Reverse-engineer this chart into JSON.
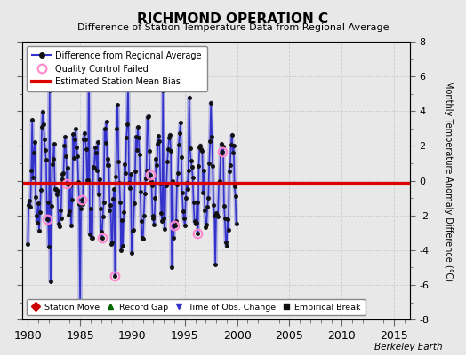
{
  "title": "RICHMOND OPERATION C",
  "subtitle": "Difference of Station Temperature Data from Regional Average",
  "ylabel_right": "Monthly Temperature Anomaly Difference (°C)",
  "xlim": [
    1979.5,
    2016.5
  ],
  "ylim": [
    -8,
    8
  ],
  "yticks": [
    -8,
    -6,
    -4,
    -2,
    0,
    2,
    4,
    6,
    8
  ],
  "xticks": [
    1980,
    1985,
    1990,
    1995,
    2000,
    2005,
    2010,
    2015
  ],
  "mean_bias": -0.15,
  "line_color": "#3333cc",
  "line_color_light": "#8888dd",
  "dot_color": "#111111",
  "bias_color": "#dd0000",
  "qc_color": "#ff88cc",
  "background_color": "#e8e8e8",
  "watermark": "Berkeley Earth",
  "legend1_items": [
    "Difference from Regional Average",
    "Quality Control Failed",
    "Estimated Station Mean Bias"
  ],
  "legend2_items": [
    "Station Move",
    "Record Gap",
    "Time of Obs. Change",
    "Empirical Break"
  ],
  "seed": 123,
  "start_year": 1980.0,
  "end_year": 2000.0,
  "amplitude": 1.8,
  "seasonal_amp": 2.5
}
